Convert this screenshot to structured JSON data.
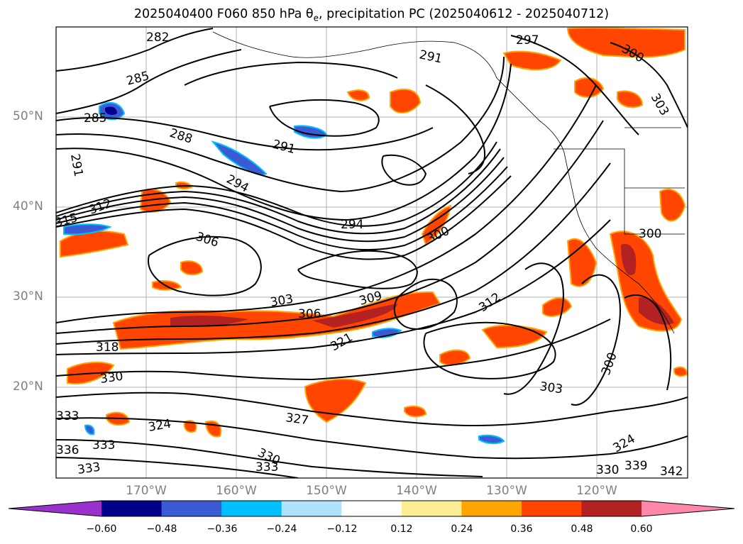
{
  "title": "2025040400 F060 850 hPa θ",
  "title_sub": "e",
  "title_rest": ", precipitation PC (2025040612 - 2025040712)",
  "lat_labels": [
    "50°N",
    "40°N",
    "30°N",
    "20°N"
  ],
  "lon_labels": [
    "170°W",
    "160°W",
    "150°W",
    "140°W",
    "130°W",
    "120°W"
  ],
  "colorbar": {
    "ticks": [
      "−0.60",
      "−0.48",
      "−0.36",
      "−0.24",
      "−0.12",
      "0.12",
      "0.24",
      "0.36",
      "0.48",
      "0.60"
    ],
    "colors": [
      "#9932cc",
      "#00008b",
      "#3a5bd4",
      "#00bfff",
      "#b0e2ff",
      "#ffffff",
      "#fdee96",
      "#ffa500",
      "#ff4500",
      "#b22222",
      "#ff88aa"
    ]
  },
  "contour_labels": [
    "282",
    "285",
    "288",
    "291",
    "294",
    "297",
    "300",
    "303",
    "306",
    "309",
    "312",
    "315",
    "318",
    "321",
    "324",
    "327",
    "330",
    "333",
    "336",
    "339",
    "342"
  ]
}
